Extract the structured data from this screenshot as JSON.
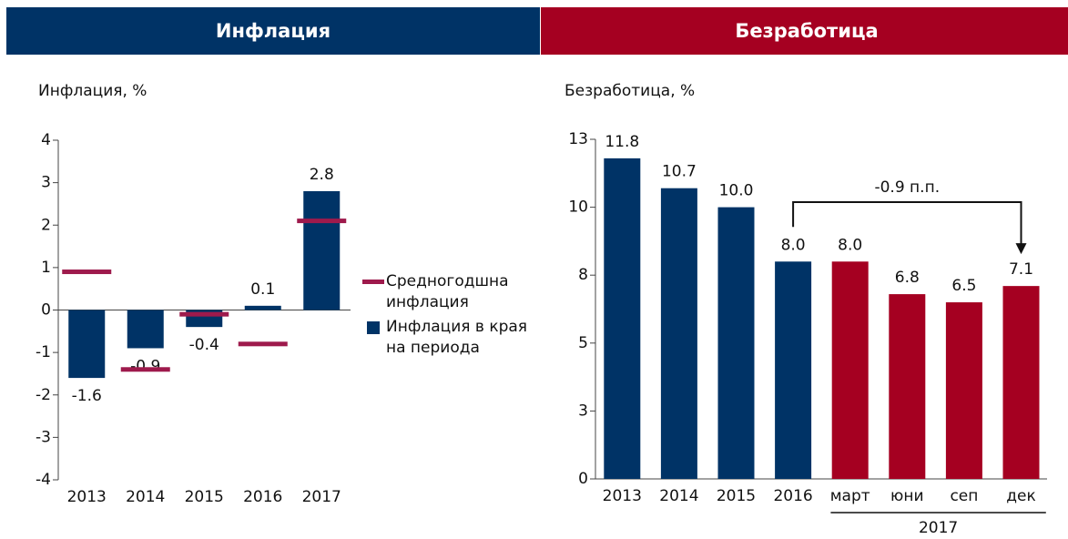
{
  "chart_data": [
    {
      "type": "bar",
      "header": "Инфлация",
      "title": "Инфлация, %",
      "categories": [
        "2013",
        "2014",
        "2015",
        "2016",
        "2017"
      ],
      "series": [
        {
          "name": "Средногодшна инфлация",
          "mark": "dash",
          "color": "#9e1a4c",
          "values": [
            0.9,
            -1.4,
            -0.1,
            -0.8,
            2.1
          ]
        },
        {
          "name": "Инфлация в края на периода",
          "mark": "bar",
          "color": "#003366",
          "values": [
            -1.6,
            -0.9,
            -0.4,
            0.1,
            2.8
          ]
        }
      ],
      "ylim": [
        -4,
        4
      ],
      "yticks": [
        -4,
        -3,
        -2,
        -1,
        0,
        1,
        2,
        3,
        4
      ],
      "legend": "right"
    },
    {
      "type": "bar",
      "header": "Безработица",
      "title": "Безработица, %",
      "categories": [
        "2013",
        "2014",
        "2015",
        "2016",
        "март",
        "юни",
        "сеп",
        "дек"
      ],
      "values": [
        11.8,
        10.7,
        10.0,
        8.0,
        8.0,
        6.8,
        6.5,
        7.1
      ],
      "value_labels": [
        "11.8",
        "10.7",
        "10.0",
        "8.0",
        "8.0",
        "6.8",
        "6.5",
        "7.1"
      ],
      "colors": [
        "#003366",
        "#003366",
        "#003366",
        "#003366",
        "#a50021",
        "#a50021",
        "#a50021",
        "#a50021"
      ],
      "ylim": [
        0,
        12.5
      ],
      "yticks": [
        0,
        {
          "value": 2.5,
          "label": "3"
        },
        5,
        {
          "value": 7.5,
          "label": "8"
        },
        10,
        {
          "value": 12.5,
          "label": "13"
        }
      ],
      "groups": [
        {
          "label": "2017",
          "start": 4,
          "end": 7
        }
      ],
      "annotation": {
        "text": "-0.9 п.п.",
        "from": 3,
        "to": 7
      }
    }
  ]
}
